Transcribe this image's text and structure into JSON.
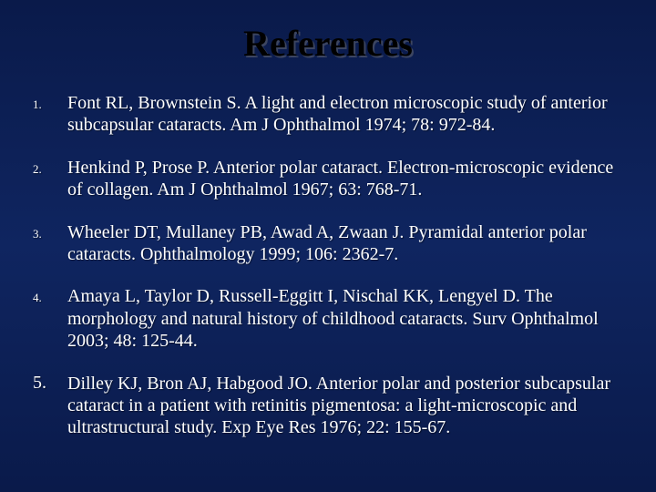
{
  "slide": {
    "title": "References",
    "title_color": "#000000",
    "title_fontsize": 40,
    "body_color": "#ffffff",
    "body_fontsize": 20,
    "background_gradient": [
      "#0a1a4a",
      "#0f2560",
      "#0a1a4a"
    ],
    "references": [
      {
        "num": "1.",
        "text": "Font RL, Brownstein S. A light and electron microscopic study of anterior subcapsular cataracts. Am J Ophthalmol 1974; 78: 972-84."
      },
      {
        "num": "2.",
        "text": "Henkind P, Prose P. Anterior polar cataract. Electron-microscopic evidence of collagen. Am J Ophthalmol 1967; 63: 768-71."
      },
      {
        "num": "3.",
        "text": "Wheeler DT, Mullaney PB, Awad A, Zwaan J. Pyramidal anterior polar cataracts. Ophthalmology 1999; 106: 2362-7."
      },
      {
        "num": "4.",
        "text": "Amaya L, Taylor D, Russell-Eggitt I, Nischal KK, Lengyel D. The morphology and natural history of childhood cataracts. Surv Ophthalmol 2003; 48: 125-44."
      },
      {
        "num": "5.",
        "text": "Dilley KJ, Bron AJ, Habgood JO. Anterior polar and posterior subcapsular cataract in a patient with retinitis pigmentosa: a light-microscopic and ultrastructural study. Exp Eye Res 1976; 22: 155-67."
      }
    ]
  }
}
